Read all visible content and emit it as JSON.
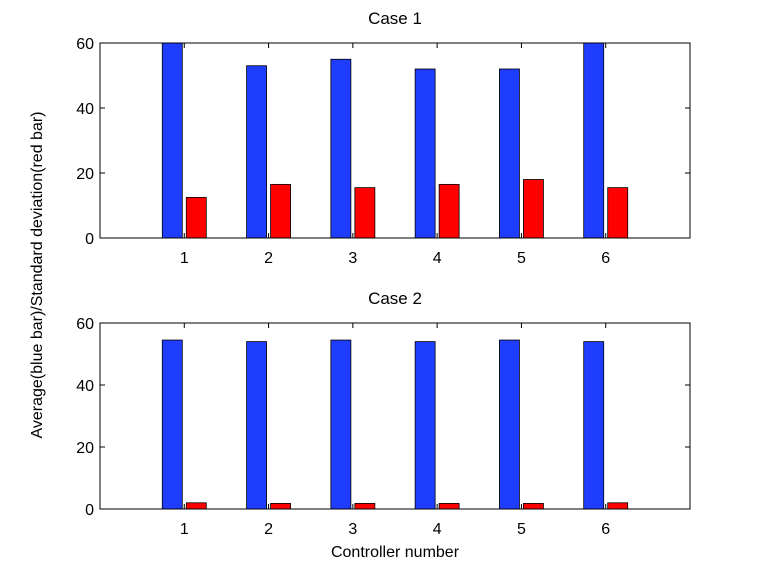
{
  "figure": {
    "ylabel": "Average(blue bar)/Standard deviation(red bar)",
    "xlabel": "Controller number"
  },
  "colors": {
    "blue_bar": "#1f3dff",
    "red_bar": "#ff0000",
    "axes": "#000000",
    "background": "#ffffff"
  },
  "chart_data": [
    {
      "type": "bar",
      "title": "Case 1",
      "xlabel": "",
      "ylabel": "",
      "categories": [
        "1",
        "2",
        "3",
        "4",
        "5",
        "6"
      ],
      "series": [
        {
          "values": [
            60,
            53,
            55,
            52,
            52,
            60
          ]
        },
        {
          "values": [
            12.5,
            16.5,
            15.5,
            16.5,
            18,
            15.5
          ]
        }
      ],
      "xlim": [
        0,
        7
      ],
      "ylim": [
        0,
        60
      ],
      "yticks": [
        "0",
        "20",
        "40",
        "60"
      ],
      "xticks": [
        "1",
        "2",
        "3",
        "4",
        "5",
        "6"
      ],
      "grid": false
    },
    {
      "type": "bar",
      "title": "Case 2",
      "xlabel": "",
      "ylabel": "",
      "categories": [
        "1",
        "2",
        "3",
        "4",
        "5",
        "6"
      ],
      "series": [
        {
          "values": [
            54.5,
            54,
            54.5,
            54,
            54.5,
            54
          ]
        },
        {
          "values": [
            2,
            1.8,
            1.8,
            1.8,
            1.8,
            2
          ]
        }
      ],
      "xlim": [
        0,
        7
      ],
      "ylim": [
        0,
        60
      ],
      "yticks": [
        "0",
        "20",
        "40",
        "60"
      ],
      "xticks": [
        "1",
        "2",
        "3",
        "4",
        "5",
        "6"
      ],
      "grid": false
    }
  ]
}
